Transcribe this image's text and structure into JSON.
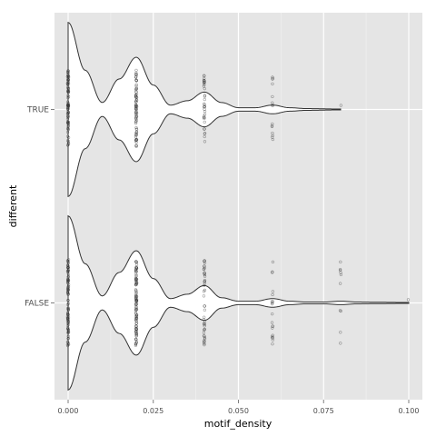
{
  "chart_data": {
    "type": "violin",
    "xlabel": "motif_density",
    "ylabel": "different",
    "xlim": [
      -0.004,
      0.104
    ],
    "x_ticks": [
      "0.000",
      "0.025",
      "0.050",
      "0.075",
      "0.100"
    ],
    "x_tick_values": [
      0,
      0.025,
      0.05,
      0.075,
      0.1
    ],
    "categories": [
      "TRUE",
      "FALSE"
    ],
    "grid": true,
    "legend": "none",
    "colors": {
      "panel_background": "#e5e5e5",
      "grid_major": "#ffffff",
      "grid_minor": "#f2f2f2",
      "violin_fill": "#ffffff",
      "violin_stroke": "#333333",
      "point": "#333333"
    },
    "series": [
      {
        "name": "TRUE",
        "density_profile": [
          [
            0,
            1.0
          ],
          [
            0.005,
            0.45
          ],
          [
            0.01,
            0.08
          ],
          [
            0.015,
            0.35
          ],
          [
            0.02,
            0.6
          ],
          [
            0.025,
            0.28
          ],
          [
            0.03,
            0.05
          ],
          [
            0.035,
            0.1
          ],
          [
            0.04,
            0.2
          ],
          [
            0.045,
            0.08
          ],
          [
            0.05,
            0.02
          ],
          [
            0.055,
            0.02
          ],
          [
            0.06,
            0.05
          ],
          [
            0.065,
            0.02
          ],
          [
            0.07,
            0.01
          ],
          [
            0.08,
            0.005
          ]
        ],
        "values": [
          {
            "x": 0,
            "n": 85,
            "spread": 0.45
          },
          {
            "x": 0.02,
            "n": 80,
            "spread": 0.45
          },
          {
            "x": 0.04,
            "n": 35,
            "spread": 0.4
          },
          {
            "x": 0.06,
            "n": 15,
            "spread": 0.37
          },
          {
            "x": 0.08,
            "n": 1,
            "spread": 0.2
          }
        ]
      },
      {
        "name": "FALSE",
        "density_profile": [
          [
            0,
            1.0
          ],
          [
            0.005,
            0.45
          ],
          [
            0.01,
            0.08
          ],
          [
            0.015,
            0.35
          ],
          [
            0.02,
            0.6
          ],
          [
            0.025,
            0.28
          ],
          [
            0.03,
            0.05
          ],
          [
            0.035,
            0.1
          ],
          [
            0.04,
            0.2
          ],
          [
            0.045,
            0.06
          ],
          [
            0.05,
            0.02
          ],
          [
            0.055,
            0.02
          ],
          [
            0.06,
            0.05
          ],
          [
            0.065,
            0.02
          ],
          [
            0.07,
            0.01
          ],
          [
            0.075,
            0.01
          ],
          [
            0.08,
            0.02
          ],
          [
            0.085,
            0.01
          ],
          [
            0.09,
            0.008
          ],
          [
            0.1,
            0.005
          ]
        ],
        "values": [
          {
            "x": 0,
            "n": 90,
            "spread": 0.5
          },
          {
            "x": 0.02,
            "n": 110,
            "spread": 0.5
          },
          {
            "x": 0.04,
            "n": 45,
            "spread": 0.49
          },
          {
            "x": 0.06,
            "n": 20,
            "spread": 0.49
          },
          {
            "x": 0.08,
            "n": 10,
            "spread": 0.49
          },
          {
            "x": 0.1,
            "n": 1,
            "spread": 0.1
          }
        ]
      }
    ]
  }
}
